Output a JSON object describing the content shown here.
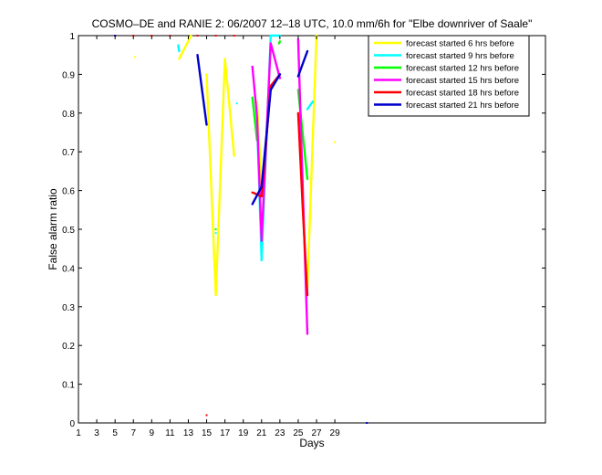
{
  "chart_data": {
    "type": "line",
    "title": "COSMO–DE and RANIE 2: 06/2007 12–18 UTC, 10.0 mm/6h for \"Elbe downriver of Saale\"",
    "xlabel": "Days",
    "ylabel": "False alarm ratio",
    "xlim": [
      1,
      52
    ],
    "ylim": [
      0,
      1
    ],
    "x_ticks": [
      1,
      3,
      5,
      7,
      9,
      11,
      13,
      15,
      17,
      19,
      21,
      23,
      25,
      27,
      29
    ],
    "y_ticks": [
      0,
      0.1,
      0.2,
      0.3,
      0.4,
      0.5,
      0.6,
      0.7,
      0.8,
      0.9,
      1
    ],
    "y_tick_labels": [
      "0",
      "0.1",
      "0.2",
      "0.3",
      "0.4",
      "0.5",
      "0.6",
      "0.7",
      "0.8",
      "0.9",
      "1"
    ],
    "grid": false,
    "legend_position": "top-right",
    "series": [
      {
        "name": "forecast started 6 hrs before",
        "color": "#ffff00",
        "segments": [
          [
            [
              12,
              0.94
            ],
            [
              13.3,
              1.0
            ]
          ],
          [
            [
              15,
              0.9
            ],
            [
              16,
              0.33
            ],
            [
              17,
              0.94
            ],
            [
              18,
              0.69
            ]
          ],
          [
            [
              20.5,
              0.83
            ],
            [
              21,
              0.6
            ]
          ],
          [
            [
              26,
              0.35
            ],
            [
              27,
              1.0
            ]
          ]
        ],
        "points": [
          [
            7.2,
            0.945
          ],
          [
            29,
            0.725
          ]
        ]
      },
      {
        "name": "forecast started 9 hrs before",
        "color": "#00ffff",
        "segments": [
          [
            [
              11.9,
              0.975
            ],
            [
              12.0,
              0.96
            ]
          ],
          [
            [
              20.5,
              0.78
            ],
            [
              21,
              0.42
            ],
            [
              22,
              1.0
            ],
            [
              23,
              1.0
            ]
          ],
          [
            [
              26,
              0.81
            ],
            [
              26.6,
              0.83
            ]
          ]
        ],
        "points": [
          [
            16,
            0.49
          ],
          [
            18.3,
            0.825
          ]
        ]
      },
      {
        "name": "forecast started 12 hrs before",
        "color": "#00ff00",
        "segments": [
          [
            [
              20,
              0.84
            ],
            [
              20.5,
              0.73
            ]
          ],
          [
            [
              22.9,
              0.98
            ],
            [
              23,
              0.985
            ]
          ],
          [
            [
              25,
              0.86
            ],
            [
              26,
              0.63
            ]
          ]
        ],
        "points": [
          [
            16,
            0.5
          ]
        ]
      },
      {
        "name": "forecast started 15 hrs before",
        "color": "#ff00ff",
        "segments": [
          [
            [
              20,
              0.92
            ],
            [
              20.5,
              0.79
            ],
            [
              21,
              0.47
            ],
            [
              22,
              0.98
            ],
            [
              23,
              0.89
            ]
          ],
          [
            [
              25,
              0.99
            ],
            [
              25.5,
              0.6
            ],
            [
              26,
              0.23
            ]
          ]
        ],
        "points": []
      },
      {
        "name": "forecast started 18 hrs before",
        "color": "#ff0000",
        "segments": [
          [
            [
              20,
              0.595
            ],
            [
              20.5,
              0.59
            ],
            [
              21,
              0.585
            ],
            [
              22,
              0.87
            ],
            [
              23,
              0.9
            ]
          ],
          [
            [
              25,
              0.8
            ],
            [
              25.5,
              0.55
            ],
            [
              26,
              0.33
            ]
          ]
        ],
        "points": [
          [
            5,
            1.0
          ],
          [
            7,
            1.0
          ],
          [
            9,
            1.0
          ],
          [
            11,
            1.0
          ],
          [
            14,
            1.0
          ],
          [
            16,
            1.0
          ],
          [
            18,
            1.0
          ],
          [
            15,
            0.02
          ]
        ]
      },
      {
        "name": "forecast started 21 hrs before",
        "color": "#0000cc",
        "segments": [
          [
            [
              14,
              0.95
            ],
            [
              15,
              0.77
            ]
          ],
          [
            [
              20,
              0.565
            ],
            [
              21,
              0.61
            ],
            [
              22,
              0.86
            ],
            [
              23,
              0.9
            ]
          ],
          [
            [
              25,
              0.895
            ],
            [
              26,
              0.96
            ]
          ]
        ],
        "points": [
          [
            5,
            1.0
          ],
          [
            32.5,
            0.0
          ]
        ]
      }
    ]
  }
}
